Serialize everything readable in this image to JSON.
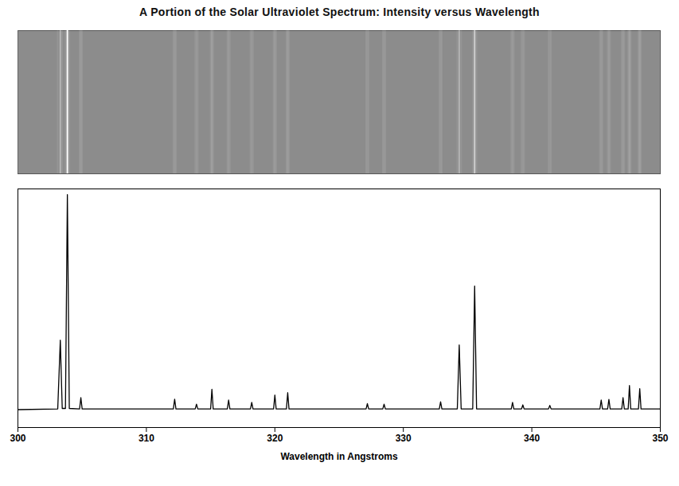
{
  "chart_data": {
    "type": "line",
    "title": "A Portion of the Solar Ultraviolet Spectrum: Intensity versus Wavelength",
    "x_label": "Wavelength in Angstroms",
    "x": [
      300,
      303.1,
      303.3,
      303.45,
      303.7,
      303.85,
      304.0,
      304.8,
      304.9,
      305.0,
      312.1,
      312.2,
      312.3,
      313.8,
      313.9,
      314.0,
      315.0,
      315.1,
      315.2,
      316.3,
      316.4,
      316.5,
      318.1,
      318.2,
      318.3,
      319.9,
      320.0,
      320.1,
      320.9,
      321.0,
      321.1,
      327.1,
      327.2,
      327.3,
      328.4,
      328.5,
      328.6,
      332.8,
      332.9,
      333.0,
      334.2,
      334.35,
      334.5,
      335.4,
      335.55,
      335.7,
      338.4,
      338.5,
      338.6,
      339.2,
      339.3,
      339.4,
      341.3,
      341.4,
      341.5,
      345.3,
      345.4,
      345.5,
      345.9,
      346.0,
      346.1,
      347.0,
      347.1,
      347.2,
      347.5,
      347.6,
      347.7,
      348.3,
      348.4,
      348.5,
      350
    ],
    "values": [
      7.5,
      7.8,
      36.6,
      8.0,
      8.0,
      97.6,
      8.0,
      7.8,
      12.5,
      7.8,
      7.8,
      11.9,
      7.8,
      7.8,
      9.8,
      7.8,
      7.8,
      16.0,
      7.8,
      7.8,
      11.5,
      7.8,
      7.8,
      10.5,
      7.8,
      7.8,
      13.6,
      7.8,
      7.8,
      14.6,
      7.8,
      7.8,
      10.0,
      7.8,
      7.8,
      9.8,
      7.8,
      7.8,
      10.8,
      7.8,
      7.8,
      34.6,
      7.8,
      7.8,
      59.3,
      7.8,
      7.8,
      10.5,
      7.8,
      7.8,
      9.5,
      7.8,
      7.8,
      9.3,
      7.8,
      7.8,
      11.5,
      7.8,
      7.8,
      11.8,
      7.8,
      7.8,
      12.5,
      7.8,
      7.8,
      17.6,
      7.8,
      7.8,
      16.3,
      7.8,
      7.8
    ],
    "xlim": [
      300,
      350
    ],
    "xticks": [
      300,
      310,
      320,
      330,
      340,
      350
    ],
    "ylim": [
      0,
      100
    ],
    "tick_labels": "x",
    "color": "#000000"
  }
}
